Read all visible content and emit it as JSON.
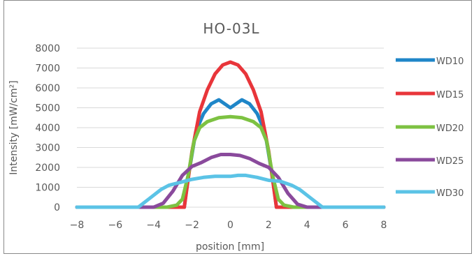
{
  "chart_data": {
    "type": "line",
    "title": "HO-03L",
    "xlabel": "position [mm]",
    "ylabel": "Intensity [mW/cm²]",
    "xlim": [
      -8,
      8
    ],
    "ylim": [
      0,
      8000
    ],
    "x_ticks": [
      -8,
      -6,
      -4,
      -2,
      0,
      2,
      4,
      6,
      8
    ],
    "y_ticks": [
      0,
      1000,
      2000,
      3000,
      4000,
      5000,
      6000,
      7000,
      8000
    ],
    "grid": "horizontal",
    "legend_position": "right",
    "series": [
      {
        "name": "WD10",
        "color": "#1f86c8",
        "x": [
          -8,
          -3,
          -2.4,
          -2.2,
          -1.8,
          -1.4,
          -1.0,
          -0.6,
          -0.3,
          0,
          0.3,
          0.6,
          1.0,
          1.4,
          1.8,
          2.2,
          2.4,
          3,
          8
        ],
        "y": [
          0,
          0,
          0,
          1500,
          3800,
          4700,
          5200,
          5400,
          5200,
          5000,
          5200,
          5400,
          5200,
          4700,
          3800,
          1500,
          0,
          0,
          0
        ]
      },
      {
        "name": "WD15",
        "color": "#e8353a",
        "x": [
          -8,
          -3,
          -2.4,
          -2.0,
          -1.6,
          -1.2,
          -0.8,
          -0.4,
          0,
          0.4,
          0.8,
          1.2,
          1.6,
          2.0,
          2.4,
          3,
          8
        ],
        "y": [
          0,
          0,
          0,
          2800,
          4800,
          5900,
          6700,
          7150,
          7300,
          7150,
          6700,
          5900,
          4800,
          2800,
          0,
          0,
          0
        ]
      },
      {
        "name": "WD20",
        "color": "#7dc242",
        "x": [
          -8,
          -3.3,
          -2.8,
          -2.5,
          -2.2,
          -1.9,
          -1.6,
          -1.2,
          -0.6,
          0,
          0.6,
          1.2,
          1.6,
          1.9,
          2.2,
          2.5,
          2.8,
          3.3,
          8
        ],
        "y": [
          0,
          0,
          100,
          400,
          1600,
          3300,
          4000,
          4300,
          4500,
          4550,
          4500,
          4300,
          4000,
          3300,
          1600,
          400,
          100,
          0,
          0
        ]
      },
      {
        "name": "WD25",
        "color": "#8a4a9c",
        "x": [
          -8,
          -4.0,
          -3.5,
          -3.0,
          -2.5,
          -2.0,
          -1.5,
          -1.0,
          -0.5,
          0,
          0.5,
          1.0,
          1.5,
          2.0,
          2.5,
          3.0,
          3.5,
          4.0,
          8
        ],
        "y": [
          0,
          0,
          200,
          800,
          1600,
          2050,
          2250,
          2500,
          2650,
          2650,
          2600,
          2450,
          2200,
          2000,
          1500,
          700,
          150,
          0,
          0
        ]
      },
      {
        "name": "WD30",
        "color": "#5bc3e6",
        "x": [
          -8,
          -4.8,
          -4.2,
          -3.6,
          -3.2,
          -2.6,
          -2.0,
          -1.4,
          -0.8,
          -0.4,
          0,
          0.4,
          0.8,
          1.4,
          2.0,
          2.6,
          3.2,
          3.6,
          4.2,
          4.8,
          8
        ],
        "y": [
          0,
          0,
          450,
          900,
          1100,
          1250,
          1400,
          1500,
          1550,
          1550,
          1550,
          1600,
          1600,
          1500,
          1350,
          1300,
          1100,
          900,
          450,
          0,
          0
        ]
      }
    ]
  }
}
